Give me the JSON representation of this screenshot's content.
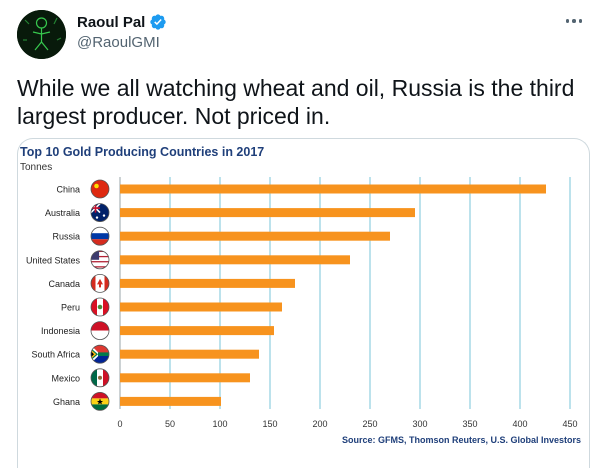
{
  "author": {
    "name": "Raoul Pal",
    "handle": "@RaoulGMI",
    "verified": true
  },
  "tweet": {
    "text": "While we all watching wheat and oil, Russia is the third largest producer. Not priced in."
  },
  "icons": {
    "more": "more-horizontal-icon",
    "verified": "verified-badge-icon"
  },
  "colors": {
    "bar": "#f7931e",
    "title": "#1f3f7a",
    "grid": "#8fcfe0",
    "verified": "#1d9bf0"
  },
  "chart_data": {
    "type": "bar",
    "orientation": "horizontal",
    "title": "Top 10 Gold Producing Countries in 2017",
    "subtitle": "Tonnes",
    "source": "Source: GFMS, Thomson Reuters, U.S. Global Investors",
    "categories": [
      "China",
      "Australia",
      "Russia",
      "United States",
      "Canada",
      "Peru",
      "Indonesia",
      "South Africa",
      "Mexico",
      "Ghana"
    ],
    "flags": [
      "china-flag-icon",
      "australia-flag-icon",
      "russia-flag-icon",
      "united-states-flag-icon",
      "canada-flag-icon",
      "peru-flag-icon",
      "indonesia-flag-icon",
      "south-africa-flag-icon",
      "mexico-flag-icon",
      "ghana-flag-icon"
    ],
    "values": [
      426,
      295,
      270,
      230,
      175,
      162,
      154,
      139,
      130,
      101
    ],
    "xlim": [
      0,
      450
    ],
    "xticks": [
      "0",
      "50",
      "100",
      "150",
      "200",
      "250",
      "300",
      "350",
      "400",
      "450"
    ],
    "grid": true
  }
}
